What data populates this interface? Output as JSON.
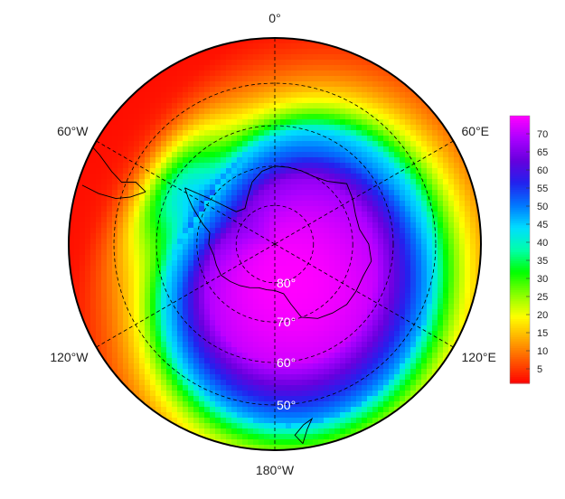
{
  "map": {
    "projection": "south-polar-stereographic",
    "grid": true,
    "longitude_labels": [
      {
        "lon": 0,
        "text": "0°"
      },
      {
        "lon": 60,
        "text": "60°E"
      },
      {
        "lon": 120,
        "text": "120°E"
      },
      {
        "lon": 180,
        "text": "180°W"
      },
      {
        "lon": -120,
        "text": "120°W"
      },
      {
        "lon": -60,
        "text": "60°W"
      }
    ],
    "latitude_labels": [
      {
        "lat": 80,
        "text": "80°"
      },
      {
        "lat": 70,
        "text": "70°"
      },
      {
        "lat": 60,
        "text": "60°"
      },
      {
        "lat": 50,
        "text": "50°"
      }
    ],
    "outer_boundary_lat": 40
  },
  "colorbar": {
    "min": 1,
    "max": 75,
    "ticks": [
      5,
      10,
      15,
      20,
      25,
      30,
      35,
      40,
      45,
      50,
      55,
      60,
      65,
      70
    ],
    "colors": [
      "#ff0000",
      "#ff5500",
      "#ffaa00",
      "#ffff00",
      "#88ff00",
      "#00ff00",
      "#00ffaa",
      "#00ddff",
      "#0077ff",
      "#2222ee",
      "#6600dd",
      "#aa00ff",
      "#ff00ff"
    ]
  },
  "field": {
    "description_free": true,
    "core": {
      "lon": 155,
      "lat": 79,
      "value": 75
    },
    "vortex_edge_lat": 56,
    "outer_value": 2
  }
}
